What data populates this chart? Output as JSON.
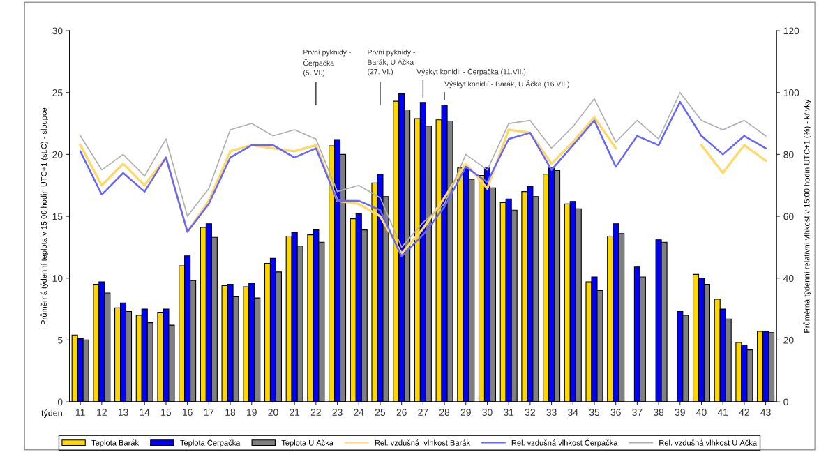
{
  "chart_data": {
    "type": "bar",
    "xlabel": "týden",
    "ylabel": "Průměrná týdenní teplota v 15:00 hodin UTC+1 (st.C) - sloupce",
    "y2label": "Průměrná týdenní relativní vlhkost v 15:00 hodin UTC+1 (%) - křivky",
    "categories": [
      "11",
      "12",
      "13",
      "14",
      "15",
      "16",
      "17",
      "18",
      "19",
      "20",
      "21",
      "22",
      "23",
      "24",
      "25",
      "26",
      "27",
      "28",
      "29",
      "30",
      "31",
      "32",
      "33",
      "34",
      "35",
      "36",
      "37",
      "38",
      "39",
      "40",
      "41",
      "42",
      "43"
    ],
    "series": [
      {
        "name": "Teplota Barák",
        "color": "#ffd700",
        "values": [
          5.4,
          9.5,
          7.6,
          7.0,
          7.2,
          11.0,
          14.1,
          9.4,
          9.3,
          11.2,
          13.4,
          13.5,
          20.7,
          14.8,
          17.7,
          24.3,
          22.9,
          22.8,
          18.9,
          18.3,
          16.1,
          17.0,
          18.4,
          16.0,
          9.7,
          13.4,
          null,
          null,
          null,
          10.3,
          8.3,
          4.8,
          5.7
        ]
      },
      {
        "name": "Teplota Čerpačka",
        "color": "#0000ff",
        "values": [
          5.1,
          9.7,
          8.0,
          7.5,
          7.5,
          11.8,
          14.4,
          9.5,
          9.6,
          11.6,
          13.7,
          13.9,
          21.2,
          15.2,
          18.4,
          24.9,
          24.2,
          24.0,
          19.1,
          18.9,
          16.4,
          17.4,
          18.9,
          16.2,
          10.1,
          14.4,
          10.9,
          13.1,
          7.3,
          10.0,
          7.5,
          4.6,
          5.7
        ]
      },
      {
        "name": "Teplota U Áčka",
        "color": "#808080",
        "values": [
          5.0,
          8.8,
          7.3,
          6.4,
          6.2,
          9.8,
          13.3,
          8.5,
          8.4,
          10.5,
          12.6,
          12.9,
          20.0,
          13.9,
          16.6,
          23.6,
          22.3,
          22.7,
          18.0,
          17.3,
          15.5,
          16.6,
          18.7,
          15.6,
          9.0,
          13.6,
          10.1,
          12.9,
          7.0,
          9.5,
          6.7,
          4.2,
          5.6
        ]
      },
      {
        "name": "Rel. vzdušná  vlhkost Barák",
        "type": "line",
        "axis": "y2",
        "color": "#ffd966",
        "values": [
          83,
          70,
          77,
          70,
          79,
          55,
          65,
          81,
          83,
          82,
          81,
          83,
          65,
          64,
          60,
          48,
          56,
          66,
          77,
          69,
          88,
          87,
          77,
          84,
          92,
          82,
          null,
          null,
          null,
          83,
          74,
          83,
          78
        ]
      },
      {
        "name": "Rel. vzdušná vlhkost Čerpačka",
        "type": "line",
        "axis": "y2",
        "color": "#6666ff",
        "values": [
          81,
          67,
          74,
          68,
          79,
          55,
          64,
          79,
          83,
          83,
          79,
          82,
          65,
          65,
          62,
          47,
          54,
          63,
          76,
          71,
          85,
          87,
          75,
          83,
          91,
          76,
          86,
          83,
          97,
          86,
          80,
          86,
          82
        ]
      },
      {
        "name": "Rel. vzdušná vlhkost U Áčka",
        "type": "line",
        "axis": "y2",
        "color": "#b0b0b0",
        "values": [
          86,
          75,
          80,
          73,
          85,
          60,
          69,
          88,
          90,
          86,
          88,
          85,
          68,
          70,
          66,
          50,
          58,
          64,
          80,
          75,
          90,
          91,
          82,
          89,
          98,
          84,
          91,
          85,
          100,
          91,
          88,
          91,
          86
        ]
      }
    ],
    "ylim": [
      0,
      30
    ],
    "yticks": [
      0,
      5,
      10,
      15,
      20,
      25,
      30
    ],
    "y2lim": [
      0,
      120
    ],
    "y2ticks": [
      0,
      20,
      40,
      60,
      80,
      100,
      120
    ],
    "annotations": [
      "První pyknidy -\nČerpačka\n(5. VI.)",
      "První pyknidy -\nBarák, U Áčka\n(27. VI.)",
      "Výskyt konidií - Čerpačka (11.VII.)",
      "Výskyt konidií - Barák, U Áčka (16.VII.)"
    ],
    "grid": false,
    "legend": "bottom"
  }
}
